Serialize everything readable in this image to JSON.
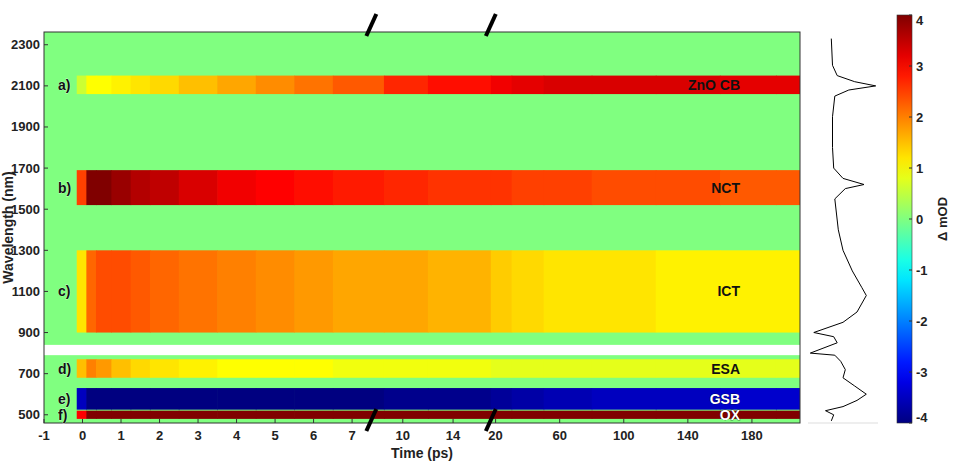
{
  "chart_data": {
    "type": "heatmap",
    "x_label": "Time (ps)",
    "y_label": "Wavelength (nm)",
    "xlim": [
      -1,
      210
    ],
    "x_breaks": [
      7.5,
      17
    ],
    "xticks": [
      -1,
      0,
      1,
      2,
      3,
      4,
      5,
      6,
      7,
      10,
      14,
      20,
      60,
      100,
      140,
      180
    ],
    "ylim": [
      460,
      2362
    ],
    "yticks": [
      500,
      700,
      900,
      1100,
      1300,
      1500,
      1700,
      1900,
      2100,
      2300
    ],
    "x": [
      -1,
      -0.3,
      0,
      0.2,
      0.5,
      1,
      1.5,
      2,
      3,
      4,
      5,
      6,
      7,
      10,
      14,
      20,
      40,
      60,
      100,
      140,
      180,
      210
    ],
    "background": 0,
    "no_data": [
      790,
      840
    ],
    "bands": [
      {
        "letter": "a)",
        "name": "ZnO CB",
        "wavelength": [
          2060,
          2150
        ],
        "values": [
          0,
          0,
          0.6,
          1,
          1,
          1.1,
          1.2,
          1.3,
          1.5,
          1.7,
          1.9,
          2.1,
          2.3,
          2.7,
          2.9,
          3.1,
          3.2,
          3.3,
          3.3,
          3.3,
          3.2,
          3.2
        ]
      },
      {
        "letter": "b)",
        "name": "NCT",
        "wavelength": [
          1520,
          1690
        ],
        "values": [
          0,
          0,
          2.5,
          4,
          4,
          3.8,
          3.6,
          3.5,
          3.3,
          3.1,
          3.0,
          2.9,
          2.8,
          2.7,
          2.6,
          2.6,
          2.5,
          2.5,
          2.4,
          2.4,
          2.3,
          2.3
        ]
      },
      {
        "letter": "c)",
        "name": "ICT",
        "wavelength": [
          900,
          1300
        ],
        "values": [
          0,
          0,
          1.2,
          2.2,
          2.4,
          2.4,
          2.3,
          2.2,
          2.1,
          2.0,
          1.9,
          1.8,
          1.7,
          1.7,
          1.6,
          1.4,
          1.3,
          1.2,
          1.2,
          1.1,
          1.1,
          1.1
        ]
      },
      {
        "letter": "d)",
        "name": "ESA",
        "wavelength": [
          680,
          770
        ],
        "values": [
          0,
          0,
          1.5,
          2.0,
          1.8,
          1.5,
          1.3,
          1.2,
          1.1,
          1.0,
          1.0,
          1.0,
          0.9,
          0.9,
          0.9,
          0.8,
          0.8,
          0.8,
          0.8,
          0.8,
          0.8,
          0.8
        ]
      },
      {
        "letter": "e)",
        "name": "GSB",
        "wavelength": [
          525,
          630
        ],
        "values": [
          0,
          0,
          -3.5,
          -4,
          -4,
          -4,
          -4,
          -4,
          -4,
          -4,
          -4,
          -4,
          -4,
          -3.9,
          -3.9,
          -3.8,
          -3.7,
          -3.6,
          -3.5,
          -3.5,
          -3.4,
          -3.4
        ]
      },
      {
        "letter": "f)",
        "name": "OX",
        "wavelength": [
          480,
          520
        ],
        "values": [
          0,
          0,
          3,
          4,
          4,
          4,
          4,
          4,
          4,
          4,
          4,
          4,
          4,
          4,
          4,
          4,
          4,
          4,
          4,
          4,
          4,
          4
        ]
      }
    ],
    "spectrum": {
      "xlim": [
        -2,
        4
      ],
      "wavelength": [
        2330,
        2200,
        2150,
        2120,
        2100,
        2080,
        2050,
        1950,
        1800,
        1700,
        1650,
        1620,
        1600,
        1550,
        1400,
        1300,
        1200,
        1120,
        1080,
        1000,
        950,
        900,
        880,
        850,
        800,
        790,
        760,
        720,
        680,
        640,
        600,
        570,
        540,
        520,
        500,
        470
      ],
      "values": [
        0,
        0.1,
        0.5,
        2,
        3.8,
        1.5,
        0.3,
        0.1,
        0.1,
        0.2,
        1,
        2.8,
        1.2,
        0.3,
        0.6,
        1,
        1.8,
        2.6,
        3.0,
        2.2,
        1.0,
        -1.5,
        0.2,
        0.5,
        -1.8,
        0.3,
        0.8,
        1.2,
        1.0,
        2.0,
        3.0,
        2.2,
        1.0,
        -0.5,
        0.2,
        0
      ]
    },
    "colorbar": {
      "label": "Δ mOD",
      "range": [
        -4,
        4
      ],
      "ticks": [
        -4,
        -3,
        -2,
        -1,
        0,
        1,
        2,
        3,
        4
      ]
    }
  }
}
